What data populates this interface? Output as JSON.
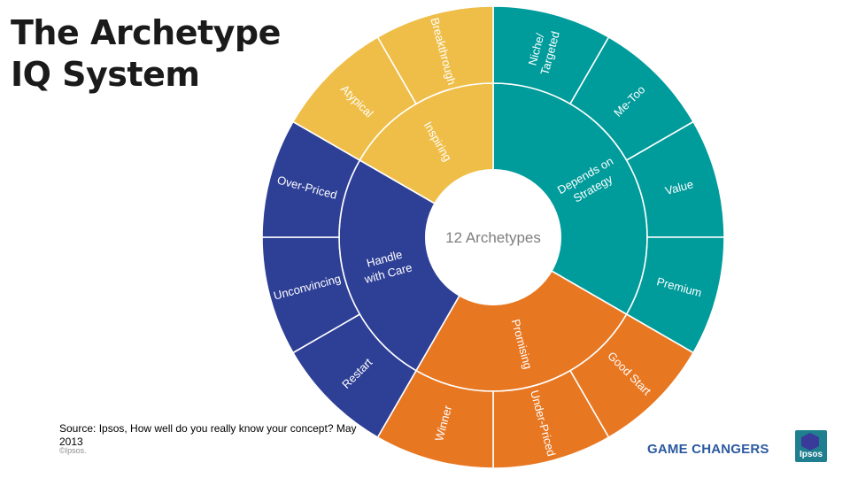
{
  "title": {
    "line1": "The Archetype",
    "line2": "IQ System"
  },
  "center_label": "12 Archetypes",
  "groups": [
    {
      "label": "Depends on Strategy",
      "color": "#009b9b",
      "archetypes": [
        "Niche/ Targeted",
        "Me-Too",
        "Value",
        "Premium"
      ]
    },
    {
      "label": "Promising",
      "color": "#e87722",
      "archetypes": [
        "Good Start",
        "Under-Priced",
        "Winner"
      ]
    },
    {
      "label": "Handle with Care",
      "color": "#2e3f96",
      "archetypes": [
        "Restart",
        "Unconvincing",
        "Over-Priced"
      ]
    },
    {
      "label": "Inspiring",
      "color": "#efbe48",
      "archetypes": [
        "Atypical",
        "Breakthrough"
      ]
    }
  ],
  "footer": {
    "source": "Source: Ipsos, How well do you really know your concept? May 2013",
    "copyright": "©Ipsos.",
    "brand": "GAME CHANGERS",
    "logo_text": "Ipsos"
  }
}
